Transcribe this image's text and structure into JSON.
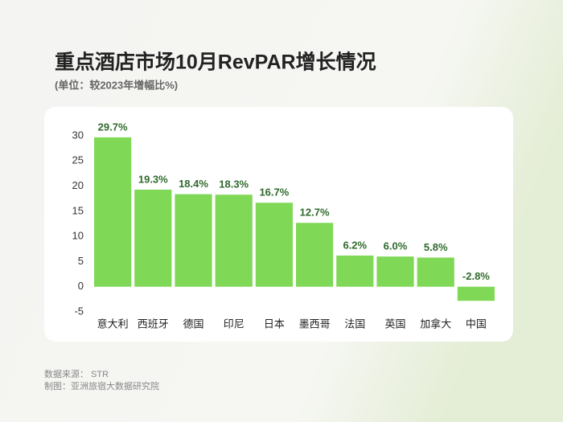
{
  "chart_data": {
    "type": "bar",
    "title": "重点酒店市场10月RevPAR增长情况",
    "subtitle": "(单位：较2023年增幅比%)",
    "categories": [
      "意大利",
      "西班牙",
      "德国",
      "印尼",
      "日本",
      "墨西哥",
      "法国",
      "英国",
      "加拿大",
      "中国"
    ],
    "values": [
      29.7,
      19.3,
      18.4,
      18.3,
      16.7,
      12.7,
      6.2,
      6.0,
      5.8,
      -2.8
    ],
    "value_labels": [
      "29.7%",
      "19.3%",
      "18.4%",
      "18.3%",
      "16.7%",
      "12.7%",
      "6.2%",
      "6.0%",
      "5.8%",
      "-2.8%"
    ],
    "color": "#7fd856",
    "ylim": [
      -5,
      30
    ],
    "yticks": [
      -5,
      0,
      5,
      10,
      15,
      20,
      25,
      30
    ],
    "grid": false,
    "source": "数据来源： STR",
    "credit": "制图：亚洲旅宿大数据研究院"
  }
}
